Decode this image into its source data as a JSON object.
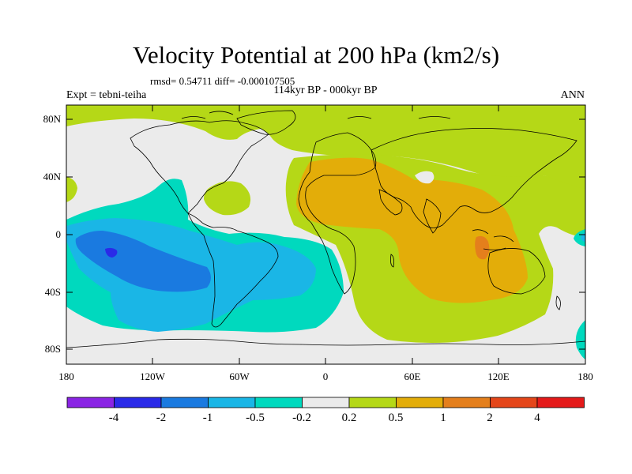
{
  "header": {
    "title": "Velocity Potential at 200 hPa (km2/s)",
    "stats": "rmsd= 0.54711 diff= -0.000107505",
    "period": "114kyr BP - 000kyr BP",
    "experiment": "Expt = tebni-teiha",
    "season": "ANN"
  },
  "axes": {
    "lat_labels": [
      "80N",
      "40N",
      "0",
      "40S",
      "80S"
    ],
    "lon_labels": [
      "180",
      "120W",
      "60W",
      "0",
      "60E",
      "120E",
      "180"
    ]
  },
  "colorbar": {
    "colors": [
      "#8a24e4",
      "#2a2ae8",
      "#1a7ae0",
      "#1ab6e6",
      "#00d9be",
      "#ebebeb",
      "#b5d817",
      "#e3ad09",
      "#e47f1c",
      "#e4461a",
      "#e41a1a"
    ],
    "labels": [
      "-4",
      "-2",
      "-1",
      "-0.5",
      "-0.2",
      "0.2",
      "0.5",
      "1",
      "2",
      "4"
    ]
  },
  "palette": {
    "neutral": "#ebebeb",
    "positive_weak": "#b5d817",
    "positive_mid": "#e3ad09",
    "positive_strong": "#e47f1c",
    "negative_weak": "#00d9be",
    "negative_mid": "#1ab6e6",
    "negative_strong": "#1a7ae0",
    "negative_max": "#2a2ae8"
  }
}
